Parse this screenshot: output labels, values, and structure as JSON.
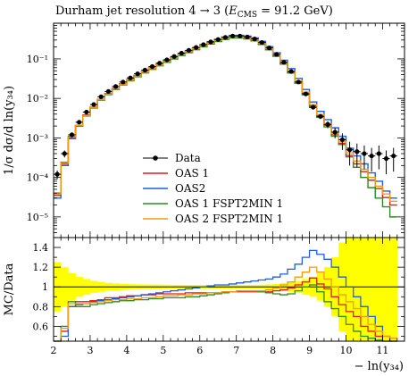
{
  "chart_data": {
    "type": "line",
    "title": "Durham jet resolution 4 → 3 (E_CMS = 91.2 GeV)",
    "title_parts": {
      "prefix": "Durham jet resolution 4 → 3 (",
      "E": "E",
      "E_sub": "CMS",
      "suffix": " = 91.2 GeV)"
    },
    "ylabel": "1/σ dσ/d ln(y₃₄)",
    "xlabel": "− ln(y₃₄)",
    "ratio_ylabel": "MC/Data",
    "xlim": [
      2,
      11.6
    ],
    "ylim_log": [
      3e-06,
      0.8
    ],
    "ratio_ylim": [
      0.45,
      1.5
    ],
    "x_ticks": [
      2,
      3,
      4,
      5,
      6,
      7,
      8,
      9,
      10,
      11
    ],
    "y_ticks": [
      {
        "value": 0.1,
        "label": "10⁻¹"
      },
      {
        "value": 0.01,
        "label": "10⁻²"
      },
      {
        "value": 0.001,
        "label": "10⁻³"
      },
      {
        "value": 0.0001,
        "label": "10⁻⁴"
      },
      {
        "value": 1e-05,
        "label": "10⁻⁵"
      }
    ],
    "ratio_ticks": [
      0.6,
      0.8,
      1,
      1.2,
      1.4
    ],
    "legend": [
      "Data",
      "OAS 1",
      "OAS2",
      "OAS 1 FSPT2MIN 1",
      "OAS 2 FSPT2MIN 1"
    ],
    "legend_position": "lower-center",
    "bin_edges": [
      2.0,
      2.2,
      2.4,
      2.6,
      2.8,
      3.0,
      3.2,
      3.4,
      3.6,
      3.8,
      4.0,
      4.2,
      4.4,
      4.6,
      4.8,
      5.0,
      5.2,
      5.4,
      5.6,
      5.8,
      6.0,
      6.2,
      6.4,
      6.6,
      6.8,
      7.0,
      7.2,
      7.4,
      7.6,
      7.8,
      8.0,
      8.2,
      8.4,
      8.6,
      8.8,
      9.0,
      9.2,
      9.4,
      9.6,
      9.8,
      10.0,
      10.2,
      10.4,
      10.6,
      10.8,
      11.0,
      11.2,
      11.4,
      11.6
    ],
    "data": {
      "name": "Data",
      "x": [
        2.1,
        2.3,
        2.5,
        2.7,
        2.9,
        3.1,
        3.3,
        3.5,
        3.7,
        3.9,
        4.1,
        4.3,
        4.5,
        4.7,
        4.9,
        5.1,
        5.3,
        5.5,
        5.7,
        5.9,
        6.1,
        6.3,
        6.5,
        6.7,
        6.9,
        7.1,
        7.3,
        7.5,
        7.7,
        7.9,
        8.1,
        8.3,
        8.5,
        8.7,
        8.9,
        9.1,
        9.3,
        9.5,
        9.7,
        9.9,
        10.1,
        10.3,
        10.5,
        10.7,
        10.9,
        11.1,
        11.3
      ],
      "y": [
        0.00012,
        0.0004,
        0.0012,
        0.0025,
        0.0045,
        0.007,
        0.011,
        0.015,
        0.02,
        0.026,
        0.033,
        0.042,
        0.052,
        0.064,
        0.078,
        0.095,
        0.115,
        0.14,
        0.165,
        0.195,
        0.23,
        0.27,
        0.31,
        0.35,
        0.38,
        0.38,
        0.36,
        0.32,
        0.26,
        0.19,
        0.13,
        0.082,
        0.048,
        0.026,
        0.013,
        0.006,
        0.0035,
        0.0022,
        0.0014,
        0.0009,
        0.0005,
        0.00045,
        0.0004,
        0.00035,
        0.0004,
        0.0003,
        0.00035
      ]
    },
    "series": [
      {
        "name": "OAS 1",
        "color": "#e41a1c",
        "y": [
          3.5e-05,
          0.00022,
          0.001,
          0.0021,
          0.0038,
          0.006,
          0.0095,
          0.0133,
          0.0178,
          0.0234,
          0.0299,
          0.0382,
          0.0477,
          0.0589,
          0.0721,
          0.0882,
          0.1072,
          0.1306,
          0.1545,
          0.1828,
          0.216,
          0.2544,
          0.2924,
          0.3308,
          0.3594,
          0.3602,
          0.3413,
          0.3034,
          0.2468,
          0.1808,
          0.1245,
          0.0795,
          0.0474,
          0.0265,
          0.0136,
          0.0065,
          0.0036,
          0.0021,
          0.0012,
          0.00072,
          0.00036,
          0.00022,
          0.00014,
          8.5e-05,
          5.2e-05,
          3.1e-05,
          2e-05
        ],
        "ratio": [
          0.3,
          0.55,
          0.8,
          0.85,
          0.85,
          0.86,
          0.87,
          0.89,
          0.89,
          0.9,
          0.91,
          0.91,
          0.92,
          0.92,
          0.93,
          0.93,
          0.93,
          0.93,
          0.94,
          0.94,
          0.94,
          0.94,
          0.94,
          0.95,
          0.95,
          0.95,
          0.95,
          0.95,
          0.95,
          0.95,
          0.96,
          0.97,
          0.99,
          1.02,
          1.05,
          1.09,
          1.03,
          0.98,
          0.9,
          0.82,
          0.75,
          0.7,
          0.6,
          0.55,
          0.5,
          0.45,
          0.4
        ]
      },
      {
        "name": "OAS2",
        "color": "#1f5fdf",
        "y": [
          3e-05,
          0.0002,
          0.00096,
          0.002,
          0.0037,
          0.0059,
          0.0093,
          0.0129,
          0.0174,
          0.023,
          0.0294,
          0.0378,
          0.0473,
          0.0589,
          0.0725,
          0.0893,
          0.1092,
          0.1344,
          0.1601,
          0.1911,
          0.2277,
          0.27,
          0.3131,
          0.357,
          0.3914,
          0.3952,
          0.378,
          0.3392,
          0.2782,
          0.2052,
          0.143,
          0.0927,
          0.0566,
          0.032,
          0.0168,
          0.0081,
          0.0047,
          0.0029,
          0.0018,
          0.0011,
          0.00055,
          0.00035,
          0.00022,
          0.00013,
          8e-05,
          4.5e-05,
          3e-05
        ],
        "ratio": [
          0.25,
          0.5,
          0.8,
          0.82,
          0.83,
          0.85,
          0.86,
          0.87,
          0.88,
          0.89,
          0.9,
          0.91,
          0.92,
          0.93,
          0.94,
          0.95,
          0.96,
          0.97,
          0.98,
          0.99,
          1.0,
          1.01,
          1.02,
          1.02,
          1.03,
          1.04,
          1.05,
          1.06,
          1.07,
          1.08,
          1.1,
          1.13,
          1.18,
          1.23,
          1.3,
          1.37,
          1.33,
          1.28,
          1.2,
          1.1,
          1.0,
          0.9,
          0.8,
          0.7,
          0.6,
          0.5,
          0.45
        ]
      },
      {
        "name": "OAS 1 FSPT2MIN 1",
        "color": "#2e8b22",
        "y": [
          4e-05,
          0.00024,
          0.0011,
          0.002,
          0.0036,
          0.0057,
          0.009,
          0.0125,
          0.0167,
          0.0218,
          0.0277,
          0.0353,
          0.044,
          0.0544,
          0.0668,
          0.0819,
          0.0996,
          0.1215,
          0.1439,
          0.1706,
          0.2018,
          0.238,
          0.2737,
          0.3098,
          0.3369,
          0.338,
          0.3208,
          0.2854,
          0.2322,
          0.1699,
          0.1164,
          0.0738,
          0.0437,
          0.0242,
          0.0123,
          0.0059,
          0.0033,
          0.0019,
          0.0011,
          0.00068,
          0.00033,
          0.00018,
          0.0001,
          5.5e-05,
          3e-05,
          1.8e-05,
          1e-05
        ],
        "ratio": [
          0.35,
          0.6,
          0.85,
          0.8,
          0.8,
          0.82,
          0.83,
          0.84,
          0.85,
          0.86,
          0.86,
          0.87,
          0.87,
          0.88,
          0.88,
          0.89,
          0.89,
          0.89,
          0.9,
          0.9,
          0.91,
          0.92,
          0.93,
          0.94,
          0.95,
          0.96,
          0.96,
          0.96,
          0.95,
          0.94,
          0.93,
          0.92,
          0.93,
          0.96,
          1.0,
          1.02,
          0.95,
          0.85,
          0.78,
          0.7,
          0.62,
          0.55,
          0.5,
          0.48,
          0.46,
          0.45,
          0.45
        ]
      },
      {
        "name": "OAS 2 FSPT2MIN 1",
        "color": "#f39c12",
        "y": [
          3.8e-05,
          0.00023,
          0.00105,
          0.0021,
          0.0037,
          0.0059,
          0.0093,
          0.013,
          0.0173,
          0.0226,
          0.0289,
          0.0369,
          0.0461,
          0.0571,
          0.0702,
          0.0862,
          0.105,
          0.1282,
          0.1521,
          0.1806,
          0.214,
          0.2527,
          0.2911,
          0.3302,
          0.3598,
          0.3617,
          0.3439,
          0.3066,
          0.2503,
          0.184,
          0.1271,
          0.0814,
          0.049,
          0.0278,
          0.0144,
          0.007,
          0.0039,
          0.0023,
          0.0013,
          0.00079,
          0.00042,
          0.00026,
          0.00016,
          0.0001,
          6e-05,
          3.8e-05,
          2.5e-05
        ],
        "ratio": [
          0.32,
          0.58,
          0.83,
          0.83,
          0.83,
          0.84,
          0.85,
          0.86,
          0.87,
          0.87,
          0.88,
          0.88,
          0.89,
          0.89,
          0.9,
          0.91,
          0.91,
          0.92,
          0.92,
          0.93,
          0.93,
          0.94,
          0.94,
          0.95,
          0.95,
          0.96,
          0.96,
          0.96,
          0.96,
          0.97,
          0.99,
          1.02,
          1.05,
          1.1,
          1.15,
          1.2,
          1.15,
          1.08,
          1.0,
          0.92,
          0.85,
          0.78,
          0.7,
          0.62,
          0.55,
          0.5,
          0.48
        ]
      }
    ],
    "uncertainty_band": {
      "color": "#ffff00",
      "half_width": [
        0.25,
        0.2,
        0.14,
        0.1,
        0.08,
        0.06,
        0.05,
        0.04,
        0.035,
        0.03,
        0.028,
        0.026,
        0.025,
        0.024,
        0.023,
        0.022,
        0.021,
        0.021,
        0.02,
        0.02,
        0.02,
        0.02,
        0.02,
        0.02,
        0.02,
        0.02,
        0.02,
        0.02,
        0.022,
        0.025,
        0.03,
        0.04,
        0.05,
        0.06,
        0.08,
        0.1,
        0.14,
        0.2,
        0.3,
        0.45,
        0.6,
        0.6,
        0.6,
        0.6,
        0.6,
        0.6,
        0.6
      ]
    }
  }
}
